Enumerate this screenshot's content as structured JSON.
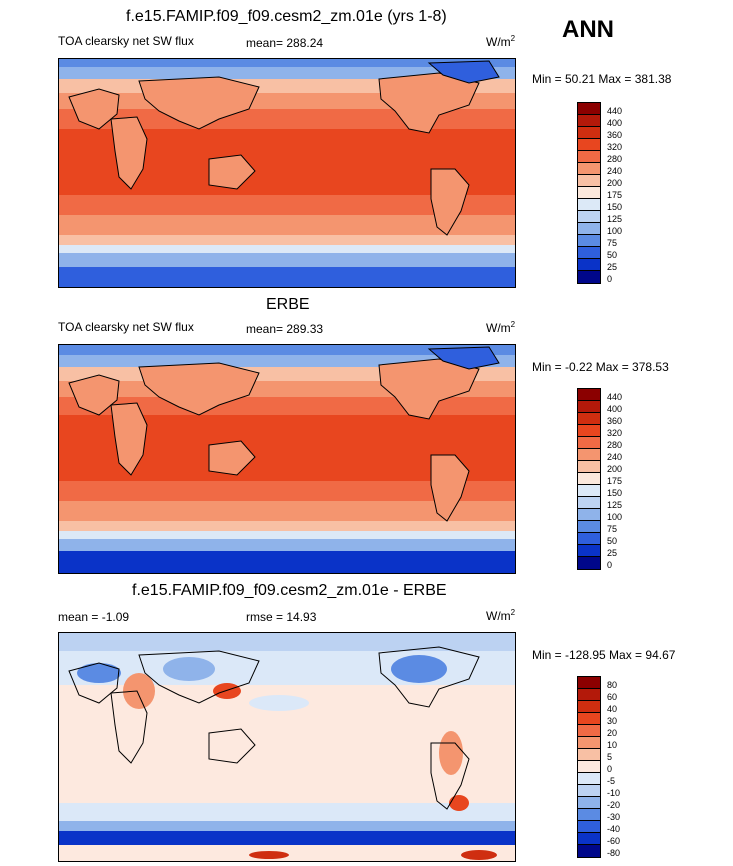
{
  "season": "ANN",
  "panels": [
    {
      "title": "f.e15.FAMIP.f09_f09.cesm2_zm.01e (yrs 1-8)",
      "variable": "TOA clearsky net SW flux",
      "stat": "mean= 288.24",
      "units_base": "W/m",
      "units_exp": "2",
      "minmax": "Min =  50.21 Max = 381.38",
      "levels": [
        "440",
        "400",
        "360",
        "320",
        "280",
        "240",
        "200",
        "175",
        "150",
        "125",
        "100",
        "75",
        "50",
        "25",
        "0"
      ]
    },
    {
      "title": "ERBE",
      "variable": "TOA clearsky net SW flux",
      "stat": "mean= 289.33",
      "units_base": "W/m",
      "units_exp": "2",
      "minmax": "Min =  -0.22 Max = 378.53",
      "levels": [
        "440",
        "400",
        "360",
        "320",
        "280",
        "240",
        "200",
        "175",
        "150",
        "125",
        "100",
        "75",
        "50",
        "25",
        "0"
      ]
    },
    {
      "title": "f.e15.FAMIP.f09_f09.cesm2_zm.01e - ERBE",
      "stat_left": "mean =  -1.09",
      "stat": "rmse =  14.93",
      "units_base": "W/m",
      "units_exp": "2",
      "minmax": "Min = -128.95 Max =  94.67",
      "levels": [
        "80",
        "60",
        "40",
        "30",
        "20",
        "10",
        "5",
        "0",
        "-5",
        "-10",
        "-20",
        "-30",
        "-40",
        "-60",
        "-80"
      ]
    }
  ],
  "colors": {
    "abs_scale": [
      "#8b0000",
      "#b3190a",
      "#cf2e10",
      "#e8461f",
      "#f06a45",
      "#f4956f",
      "#f8c0a4",
      "#fbe8dc",
      "#dce9f7",
      "#bdd3f2",
      "#8fb3ea",
      "#5b8be3",
      "#2f5fdd",
      "#0a33c8",
      "#00078a"
    ],
    "diff_scale": [
      "#8b0000",
      "#b3190a",
      "#cf2e10",
      "#e8461f",
      "#f06a45",
      "#f4956f",
      "#f8c0a4",
      "#fde9df",
      "#dbe8f8",
      "#bcd2f2",
      "#8fb3ea",
      "#5b8be3",
      "#2f5fdd",
      "#0a33c8",
      "#00078a"
    ]
  },
  "chart_data": [
    {
      "type": "heatmap",
      "title": "f.e15.FAMIP.f09_f09.cesm2_zm.01e (yrs 1-8)",
      "subtitle": "TOA clearsky net SW flux",
      "units": "W/m2",
      "mean": 288.24,
      "min": 50.21,
      "max": 381.38,
      "contour_levels": [
        0,
        25,
        50,
        75,
        100,
        125,
        150,
        175,
        200,
        240,
        280,
        320,
        360,
        400,
        440
      ],
      "x": "longitude (0E-360E)",
      "y": "latitude (-90 to 90)"
    },
    {
      "type": "heatmap",
      "title": "ERBE",
      "subtitle": "TOA clearsky net SW flux",
      "units": "W/m2",
      "mean": 289.33,
      "min": -0.22,
      "max": 378.53,
      "contour_levels": [
        0,
        25,
        50,
        75,
        100,
        125,
        150,
        175,
        200,
        240,
        280,
        320,
        360,
        400,
        440
      ]
    },
    {
      "type": "heatmap",
      "title": "f.e15.FAMIP.f09_f09.cesm2_zm.01e - ERBE",
      "units": "W/m2",
      "mean": -1.09,
      "rmse": 14.93,
      "min": -128.95,
      "max": 94.67,
      "contour_levels": [
        -80,
        -60,
        -40,
        -30,
        -20,
        -10,
        -5,
        0,
        5,
        10,
        20,
        30,
        40,
        60,
        80
      ]
    }
  ]
}
